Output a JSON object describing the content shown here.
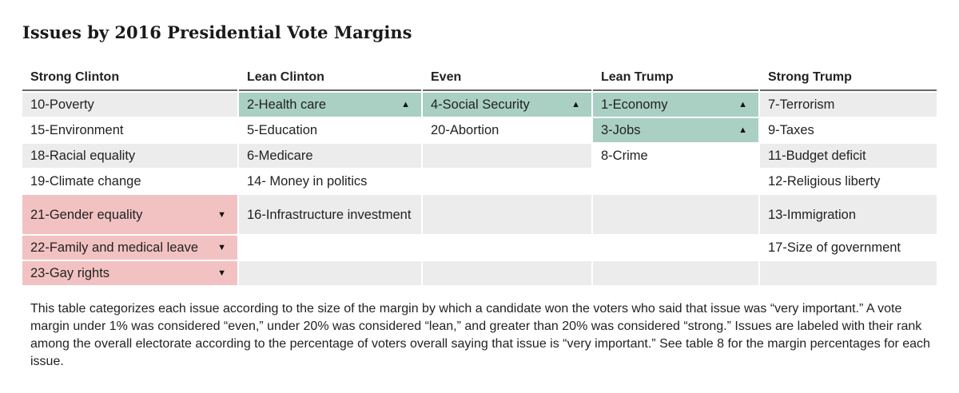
{
  "title": "Issues by 2016 Presidential Vote Margins",
  "arrows": {
    "up": "▲",
    "down": "▼"
  },
  "chart_data": {
    "type": "table",
    "columns": [
      "Strong Clinton",
      "Lean Clinton",
      "Even",
      "Lean Trump",
      "Strong Trump"
    ],
    "rows": [
      [
        "10-Poverty",
        "2-Health care",
        "4-Social Security",
        "1-Economy",
        "7-Terrorism"
      ],
      [
        "15-Environment",
        "5-Education",
        "20-Abortion",
        "3-Jobs",
        "9-Taxes"
      ],
      [
        "18-Racial equality",
        "6-Medicare",
        "",
        "8-Crime",
        "11-Budget deficit"
      ],
      [
        "19-Climate change",
        "14- Money in politics",
        "",
        "",
        "12-Religious liberty"
      ],
      [
        "21-Gender equality",
        "16-Infrastructure investment",
        "",
        "",
        "13-Immigration"
      ],
      [
        "22-Family and medical leave",
        "",
        "",
        "",
        "17-Size of government"
      ],
      [
        "23-Gay rights",
        "",
        "",
        "",
        ""
      ]
    ],
    "highlight_colors": {
      "up": "#a9d0c3",
      "down": "#f2c2c2",
      "shade": "#ececec"
    },
    "up_cells": [
      "2-Health care",
      "4-Social Security",
      "1-Economy",
      "3-Jobs"
    ],
    "down_cells": [
      "21-Gender equality",
      "22-Family and medical leave",
      "23-Gay rights"
    ]
  },
  "footnote": "This table categorizes each issue according to the size of the margin by which a candidate won the voters who said that issue was “very important.” A vote margin under 1% was considered “even,” under 20% was considered “lean,” and greater than 20% was considered “strong.” Issues are labeled with their rank among the overall electorate according to the percentage of voters overall saying that issue is “very important.” See table 8 for the margin percentages for each issue."
}
